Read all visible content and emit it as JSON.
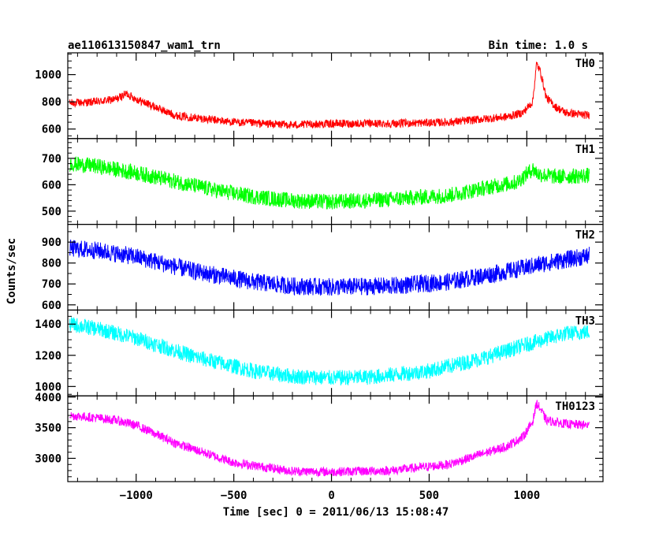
{
  "header": {
    "obs_id": "ae110613150847_wam1_trn",
    "bin_time": "Bin time: 1.0 s"
  },
  "axes": {
    "ylabel": "Counts/sec",
    "xlabel": "Time [sec] 0 = 2011/06/13 15:08:47"
  },
  "chart_data": {
    "type": "line",
    "title": "ae110613150847_wam1_trn",
    "subtitle": "Bin time: 1.0 s",
    "xlabel": "Time [sec] 0 = 2011/06/13 15:08:47",
    "ylabel": "Counts/sec",
    "xlim": [
      -1350,
      1390
    ],
    "x_ticks": [
      -1000,
      -500,
      0,
      500,
      1000
    ],
    "x_tick_labels": [
      "−1000",
      "−500",
      "0",
      "500",
      "1000"
    ],
    "grid": false,
    "panels": [
      {
        "name": "TH0",
        "color": "#ff0000",
        "ylim": [
          530,
          1160
        ],
        "y_ticks": [
          600,
          800,
          1000
        ],
        "y_tick_labels": [
          "600",
          "800",
          "1000"
        ],
        "noise": 60,
        "x": [
          -1340,
          -1200,
          -1100,
          -1050,
          -1000,
          -800,
          -500,
          -200,
          0,
          300,
          600,
          900,
          980,
          1030,
          1050,
          1070,
          1100,
          1150,
          1200,
          1320
        ],
        "y": [
          790,
          800,
          820,
          860,
          820,
          700,
          650,
          630,
          640,
          640,
          650,
          690,
          720,
          800,
          1080,
          1020,
          830,
          760,
          720,
          700
        ]
      },
      {
        "name": "TH1",
        "color": "#00ff00",
        "ylim": [
          450,
          775
        ],
        "y_ticks": [
          500,
          600,
          700
        ],
        "y_tick_labels": [
          "500",
          "600",
          "700"
        ],
        "noise": 60,
        "x": [
          -1340,
          -1200,
          -1000,
          -600,
          -400,
          -200,
          0,
          300,
          600,
          800,
          950,
          1030,
          1060,
          1150,
          1320
        ],
        "y": [
          680,
          670,
          645,
          580,
          555,
          540,
          535,
          545,
          560,
          590,
          610,
          660,
          640,
          630,
          635
        ]
      },
      {
        "name": "TH2",
        "color": "#0000ff",
        "ylim": [
          575,
          985
        ],
        "y_ticks": [
          600,
          700,
          800,
          900
        ],
        "y_tick_labels": [
          "600",
          "700",
          "800",
          "900"
        ],
        "noise": 85,
        "x": [
          -1340,
          -1200,
          -1000,
          -700,
          -400,
          -200,
          0,
          300,
          600,
          900,
          1100,
          1320
        ],
        "y": [
          870,
          860,
          830,
          760,
          710,
          690,
          685,
          690,
          710,
          760,
          800,
          835
        ]
      },
      {
        "name": "TH3",
        "color": "#00ffff",
        "ylim": [
          940,
          1490
        ],
        "y_ticks": [
          1000,
          1200,
          1400
        ],
        "y_tick_labels": [
          "1000",
          "1200",
          "1400"
        ],
        "noise": 100,
        "x": [
          -1340,
          -1200,
          -1000,
          -700,
          -400,
          -200,
          0,
          200,
          500,
          800,
          1000,
          1200,
          1320
        ],
        "y": [
          1400,
          1370,
          1310,
          1190,
          1100,
          1065,
          1055,
          1060,
          1100,
          1190,
          1270,
          1340,
          1350
        ]
      },
      {
        "name": "TH0123",
        "color": "#ff00ff",
        "ylim": [
          2620,
          4020
        ],
        "y_ticks": [
          3000,
          3500,
          4000
        ],
        "y_tick_labels": [
          "3000",
          "3500",
          "4000"
        ],
        "noise": 150,
        "x": [
          -1340,
          -1200,
          -1100,
          -1000,
          -800,
          -500,
          -200,
          0,
          300,
          600,
          900,
          980,
          1030,
          1050,
          1070,
          1100,
          1200,
          1320
        ],
        "y": [
          3700,
          3660,
          3620,
          3540,
          3250,
          2930,
          2790,
          2780,
          2800,
          2900,
          3200,
          3350,
          3600,
          3900,
          3800,
          3620,
          3560,
          3540
        ]
      }
    ]
  }
}
